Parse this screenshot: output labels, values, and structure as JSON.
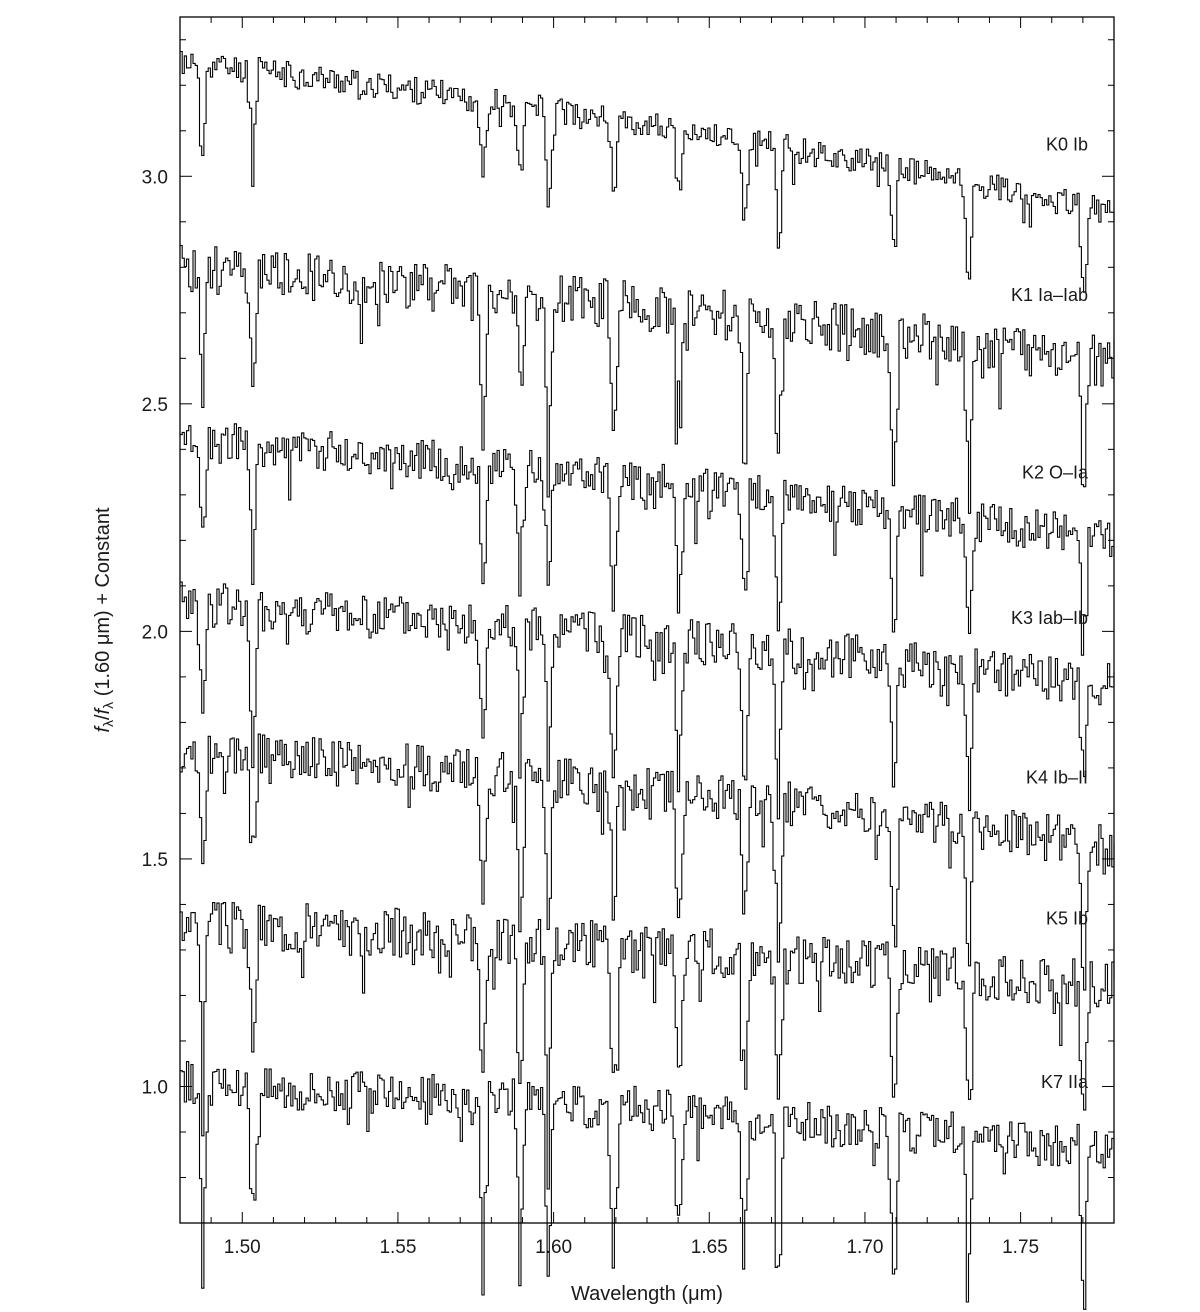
{
  "chart_data": {
    "type": "line",
    "title": "",
    "xlabel": "Wavelength (μm)",
    "ylabel": "fλ/fλ (1.60 μm) + Constant",
    "ylabel_parts": {
      "f": "f",
      "lambda": "λ",
      "slash": "/",
      "rest": " (1.60 μm) + Constant"
    },
    "xlim": [
      1.48,
      1.78
    ],
    "ylim": [
      0.7,
      3.35
    ],
    "x_ticks": [
      1.5,
      1.55,
      1.6,
      1.65,
      1.7,
      1.75
    ],
    "x_tick_labels": [
      "1.50",
      "1.55",
      "1.60",
      "1.65",
      "1.70",
      "1.75"
    ],
    "y_ticks": [
      1.0,
      1.5,
      2.0,
      2.5,
      3.0
    ],
    "y_tick_labels": [
      "1.0",
      "1.5",
      "2.0",
      "2.5",
      "3.0"
    ],
    "grid": false,
    "line_color": "#000000",
    "series": [
      {
        "name": "K0 Ib",
        "start": 3.25,
        "end": 2.92,
        "amp": 0.03,
        "dip": 0.25,
        "seed": 11
      },
      {
        "name": "K1 Ia–Iab",
        "start": 2.8,
        "end": 2.59,
        "amp": 0.055,
        "dip": 0.4,
        "seed": 23
      },
      {
        "name": "K2 O–Ia",
        "start": 2.42,
        "end": 2.2,
        "amp": 0.045,
        "dip": 0.35,
        "seed": 37
      },
      {
        "name": "K3 Iab–Ib",
        "start": 2.06,
        "end": 1.88,
        "amp": 0.05,
        "dip": 0.4,
        "seed": 41
      },
      {
        "name": "K4 Ib–II",
        "start": 1.74,
        "end": 1.53,
        "amp": 0.05,
        "dip": 0.4,
        "seed": 53
      },
      {
        "name": "K5 Ib",
        "start": 1.36,
        "end": 1.22,
        "amp": 0.055,
        "dip": 0.45,
        "seed": 67
      },
      {
        "name": "K7 IIa",
        "start": 1.01,
        "end": 0.86,
        "amp": 0.05,
        "dip": 0.45,
        "seed": 79
      }
    ],
    "absorption_features_um": [
      1.487,
      1.503,
      1.577,
      1.589,
      1.598,
      1.619,
      1.64,
      1.661,
      1.672,
      1.709,
      1.733,
      1.77
    ]
  }
}
